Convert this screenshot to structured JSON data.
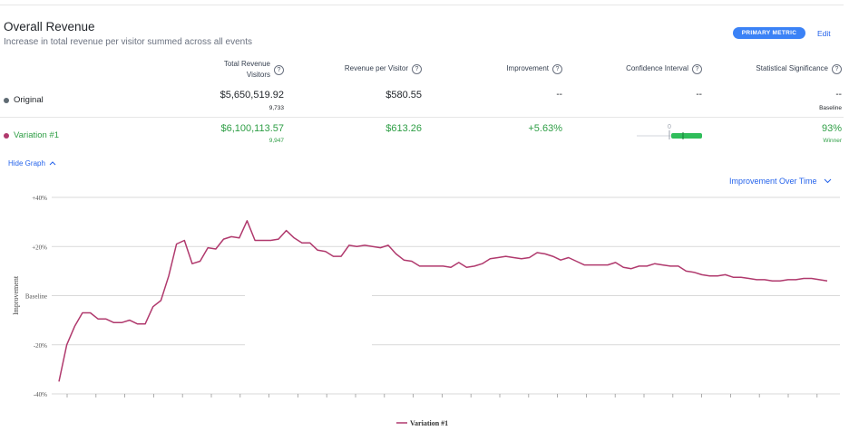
{
  "header": {
    "title": "Overall Revenue",
    "subtitle": "Increase in total revenue per visitor summed across all events",
    "badge": "PRIMARY METRIC",
    "edit": "Edit"
  },
  "columns": {
    "total_revenue_1": "Total Revenue",
    "total_revenue_2": "Visitors",
    "revenue_per_visitor": "Revenue per Visitor",
    "improvement": "Improvement",
    "confidence_interval": "Confidence Interval",
    "statistical_significance": "Statistical Significance"
  },
  "rows": [
    {
      "name": "Original",
      "color": "#5f6b73",
      "total_revenue": "$5,650,519.92",
      "visitors": "9,733",
      "revenue_per_visitor": "$580.55",
      "improvement": "--",
      "confidence_interval": "--",
      "significance": "--",
      "significance_sub": "Baseline"
    },
    {
      "name": "Variation #1",
      "color": "#b0396d",
      "total_revenue": "$6,100,113.57",
      "visitors": "9,947",
      "revenue_per_visitor": "$613.26",
      "improvement": "+5.63%",
      "ci_zero_label": "0",
      "significance": "93%",
      "significance_sub": "Winner"
    }
  ],
  "accent_green": "#2e9e45",
  "controls": {
    "hide_graph": "Hide Graph",
    "hide_graph_icon": "chevron-up-icon",
    "graph_view": "Improvement Over Time",
    "graph_view_icon": "chevron-down-icon"
  },
  "chart_data": {
    "type": "line",
    "ylabel": "Improvement",
    "ylim": [
      -40,
      40
    ],
    "y_tick_labels": [
      "+40%",
      "+20%",
      "Baseline",
      "-20%",
      "-40%"
    ],
    "series": [
      {
        "name": "Variation #1",
        "color": "#b0396d",
        "values": [
          -35,
          -20,
          -12.5,
          -7,
          -7,
          -9.5,
          -9.5,
          -11,
          -11,
          -10,
          -11.5,
          -11.5,
          -4.5,
          -2,
          8,
          21,
          22.5,
          13,
          14,
          19.5,
          19,
          23,
          24,
          23.5,
          30.5,
          22.5,
          22.5,
          22.5,
          23,
          26.5,
          23.5,
          21.5,
          21.5,
          18.5,
          18,
          16,
          16,
          20.5,
          20,
          20.5,
          20,
          19.5,
          20.5,
          17,
          14.5,
          14,
          12,
          12,
          12,
          12,
          11.5,
          13.5,
          11.5,
          12,
          13,
          15,
          15.5,
          16,
          15.5,
          15,
          15.5,
          17.5,
          17,
          16,
          14.5,
          15.5,
          14,
          12.5,
          12.5,
          12.5,
          12.5,
          13.5,
          11.5,
          11,
          12,
          12,
          13,
          12.5,
          12,
          12,
          10,
          9.5,
          8.5,
          8,
          8,
          8.5,
          7.5,
          7.5,
          7,
          6.5,
          6.5,
          6,
          6,
          6.5,
          6.5,
          7,
          7,
          6.5,
          6
        ]
      }
    ],
    "legend": "bottom-center",
    "grid": true
  }
}
